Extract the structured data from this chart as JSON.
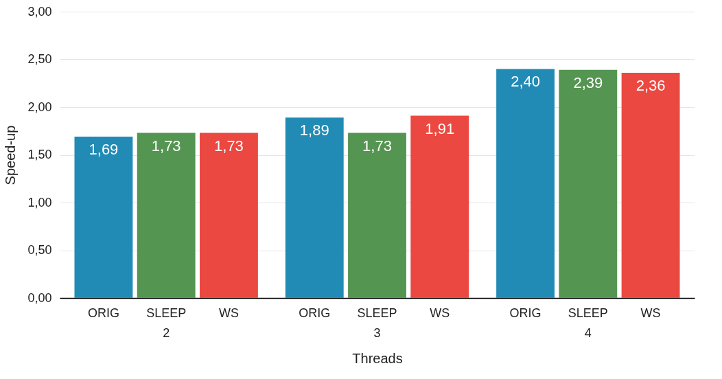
{
  "chart_data": {
    "type": "bar",
    "xlabel": "Threads",
    "ylabel": "Speed-up",
    "categories": [
      "2",
      "3",
      "4"
    ],
    "series": [
      {
        "name": "ORIG",
        "color": "#218bb5",
        "values": [
          1.69,
          1.89,
          2.4
        ],
        "value_labels": [
          "1,69",
          "1,89",
          "2,40"
        ]
      },
      {
        "name": "SLEEP",
        "color": "#559552",
        "values": [
          1.73,
          1.73,
          2.39
        ],
        "value_labels": [
          "1,73",
          "1,73",
          "2,39"
        ]
      },
      {
        "name": "WS",
        "color": "#ea4840",
        "values": [
          1.73,
          1.91,
          2.36
        ],
        "value_labels": [
          "1,73",
          "1,91",
          "2,36"
        ]
      }
    ],
    "ylim": [
      0,
      3
    ],
    "yticks": [
      {
        "value": 0,
        "label": "0,00"
      },
      {
        "value": 0.5,
        "label": "0,50"
      },
      {
        "value": 1,
        "label": "1,00"
      },
      {
        "value": 1.5,
        "label": "1,50"
      },
      {
        "value": 2,
        "label": "2,00"
      },
      {
        "value": 2.5,
        "label": "2,50"
      },
      {
        "value": 3,
        "label": "3,00"
      }
    ],
    "grid": "y",
    "legend": false
  }
}
